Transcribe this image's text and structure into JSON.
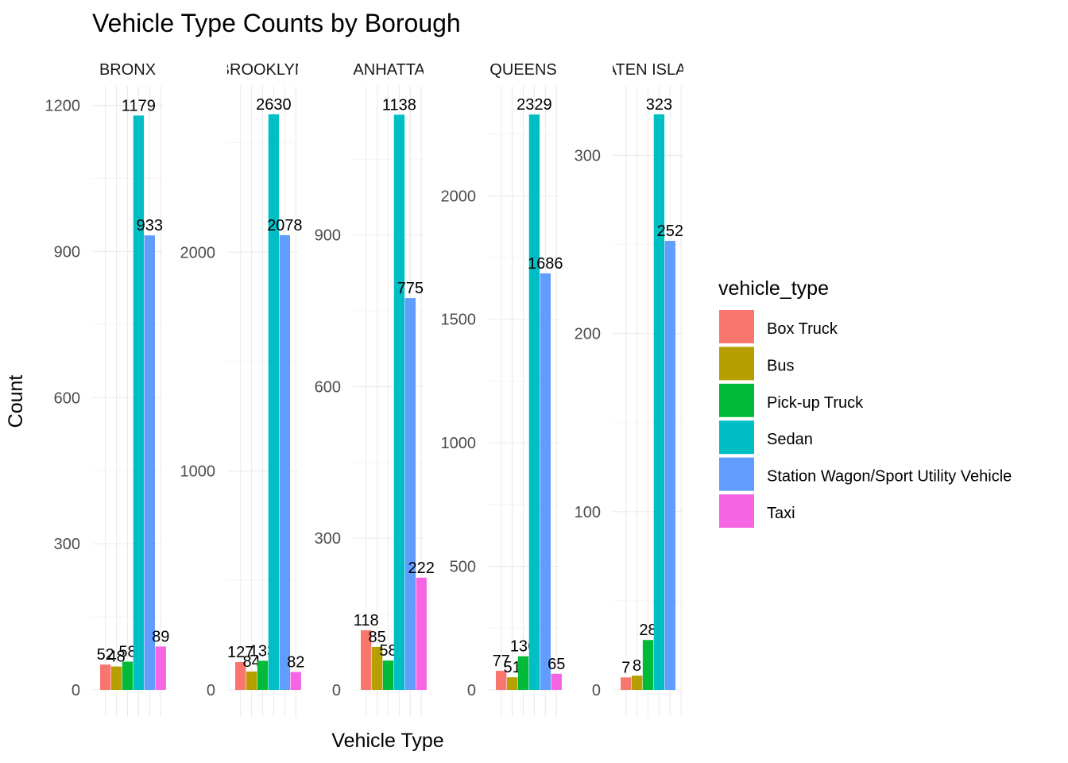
{
  "chart_data": {
    "type": "bar",
    "title": "Vehicle Type Counts by Borough",
    "xlabel": "Vehicle Type",
    "ylabel": "Count",
    "legend_title": "vehicle_type",
    "legend_position": "right",
    "grid": true,
    "categories": [
      "Box Truck",
      "Bus",
      "Pick-up Truck",
      "Sedan",
      "Station Wagon/Sport Utility Vehicle",
      "Taxi"
    ],
    "colors": [
      "#F8766D",
      "#B79F00",
      "#00BA38",
      "#00BFC4",
      "#619CFF",
      "#F564E3"
    ],
    "panels": [
      {
        "strip": "BRONX",
        "values": [
          52,
          48,
          58,
          1179,
          933,
          89
        ],
        "labels": [
          "52",
          "48",
          "58",
          "1179",
          "933",
          "89"
        ],
        "ylim": [
          0,
          1240
        ],
        "yticks": [
          0,
          300,
          600,
          900,
          1200
        ]
      },
      {
        "strip": "BROOKLYN",
        "values": [
          127,
          84,
          133,
          2630,
          2078,
          82
        ],
        "labels": [
          "127",
          "84",
          "133",
          "2630",
          "2078",
          "82"
        ],
        "ylim": [
          0,
          2760
        ],
        "yticks": [
          0,
          1000,
          2000
        ]
      },
      {
        "strip": "MANHATTAN",
        "values": [
          118,
          85,
          58,
          1138,
          775,
          222
        ],
        "labels": [
          "118",
          "85",
          "58",
          "1138",
          "775",
          "222"
        ],
        "ylim": [
          0,
          1195
        ],
        "yticks": [
          0,
          300,
          600,
          900
        ]
      },
      {
        "strip": "QUEENS",
        "values": [
          77,
          51,
          136,
          2329,
          1686,
          65
        ],
        "labels": [
          "77",
          "51",
          "136",
          "2329",
          "1686",
          "65"
        ],
        "ylim": [
          0,
          2445
        ],
        "yticks": [
          0,
          500,
          1000,
          1500,
          2000
        ]
      },
      {
        "strip": "STATEN ISLAND",
        "values": [
          7,
          8,
          28,
          323,
          252,
          0
        ],
        "labels": [
          "7",
          "8",
          "28",
          "323",
          "252",
          ""
        ],
        "ylim": [
          0,
          339
        ],
        "yticks": [
          0,
          100,
          200,
          300
        ]
      }
    ]
  }
}
